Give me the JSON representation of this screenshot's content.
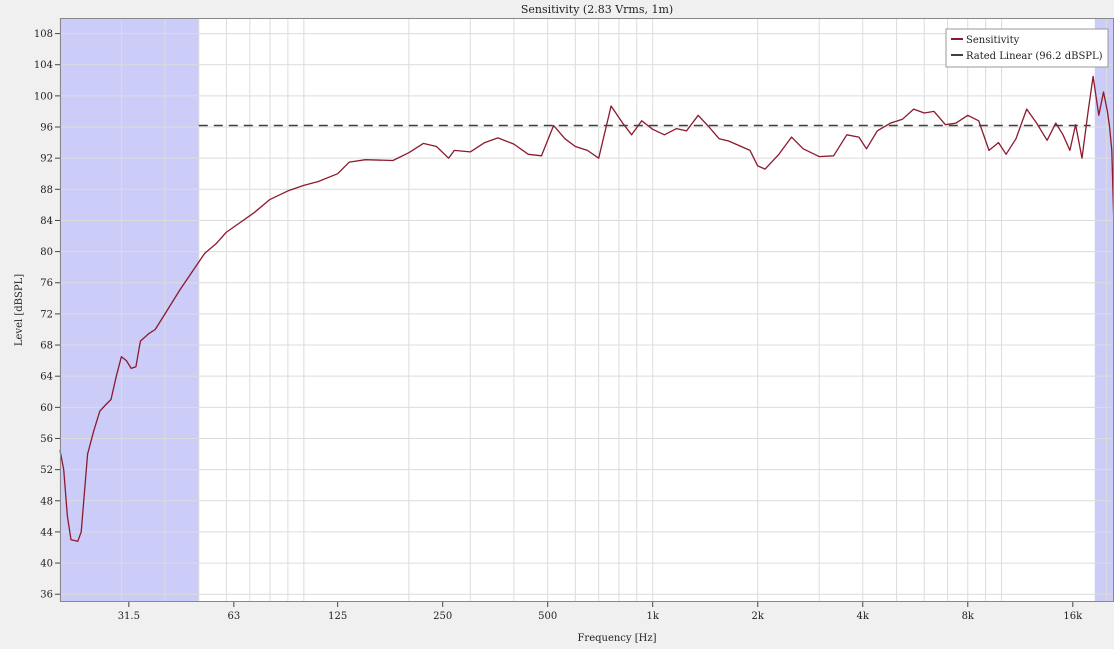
{
  "chart_data": {
    "type": "line",
    "title": "Sensitivity (2.83 Vrms, 1m)",
    "xlabel": "Frequency [Hz]",
    "ylabel": "Level [dBSPL]",
    "x_scale": "log",
    "xlim": [
      20,
      21000
    ],
    "ylim": [
      35,
      110
    ],
    "x_ticks": [
      {
        "value": 31.5,
        "label": "31.5"
      },
      {
        "value": 63,
        "label": "63"
      },
      {
        "value": 125,
        "label": "125"
      },
      {
        "value": 250,
        "label": "250"
      },
      {
        "value": 500,
        "label": "500"
      },
      {
        "value": 1000,
        "label": "1k"
      },
      {
        "value": 2000,
        "label": "2k"
      },
      {
        "value": 4000,
        "label": "4k"
      },
      {
        "value": 8000,
        "label": "8k"
      },
      {
        "value": 16000,
        "label": "16k"
      }
    ],
    "y_ticks": [
      36,
      40,
      44,
      48,
      52,
      56,
      60,
      64,
      68,
      72,
      76,
      80,
      84,
      88,
      92,
      96,
      100,
      104,
      108
    ],
    "grid": true,
    "legend_position": "top-right",
    "shaded_bands": [
      {
        "from": 20,
        "to": 50
      },
      {
        "from": 18500,
        "to": 21000
      }
    ],
    "series": [
      {
        "name": "Sensitivity",
        "color": "#8b1a2e",
        "style": "solid",
        "points": [
          [
            20,
            54.5
          ],
          [
            20.5,
            52
          ],
          [
            21,
            46
          ],
          [
            21.5,
            43
          ],
          [
            22.5,
            42.8
          ],
          [
            23,
            44
          ],
          [
            24,
            54
          ],
          [
            25,
            57
          ],
          [
            26,
            59.5
          ],
          [
            27,
            60.3
          ],
          [
            28,
            61
          ],
          [
            29,
            64
          ],
          [
            30,
            66.5
          ],
          [
            31,
            66
          ],
          [
            32,
            65
          ],
          [
            33,
            65.2
          ],
          [
            34,
            68.5
          ],
          [
            36,
            69.5
          ],
          [
            37.5,
            70
          ],
          [
            40,
            72
          ],
          [
            44,
            75
          ],
          [
            48,
            77.5
          ],
          [
            52,
            79.8
          ],
          [
            56,
            81
          ],
          [
            60,
            82.5
          ],
          [
            66,
            83.8
          ],
          [
            72,
            85
          ],
          [
            80,
            86.7
          ],
          [
            90,
            87.8
          ],
          [
            100,
            88.5
          ],
          [
            110,
            89
          ],
          [
            125,
            90
          ],
          [
            135,
            91.5
          ],
          [
            150,
            91.8
          ],
          [
            180,
            91.7
          ],
          [
            200,
            92.7
          ],
          [
            220,
            93.9
          ],
          [
            240,
            93.5
          ],
          [
            260,
            92
          ],
          [
            270,
            93
          ],
          [
            300,
            92.8
          ],
          [
            330,
            94
          ],
          [
            360,
            94.6
          ],
          [
            400,
            93.8
          ],
          [
            440,
            92.5
          ],
          [
            480,
            92.3
          ],
          [
            520,
            96.2
          ],
          [
            560,
            94.5
          ],
          [
            600,
            93.5
          ],
          [
            650,
            93
          ],
          [
            700,
            92
          ],
          [
            760,
            98.7
          ],
          [
            820,
            96.5
          ],
          [
            870,
            95
          ],
          [
            930,
            96.8
          ],
          [
            1000,
            95.7
          ],
          [
            1080,
            95
          ],
          [
            1170,
            95.8
          ],
          [
            1250,
            95.5
          ],
          [
            1350,
            97.5
          ],
          [
            1450,
            96
          ],
          [
            1550,
            94.5
          ],
          [
            1650,
            94.2
          ],
          [
            1750,
            93.7
          ],
          [
            1900,
            93
          ],
          [
            2000,
            91
          ],
          [
            2100,
            90.6
          ],
          [
            2300,
            92.5
          ],
          [
            2500,
            94.7
          ],
          [
            2700,
            93.2
          ],
          [
            3000,
            92.2
          ],
          [
            3300,
            92.3
          ],
          [
            3600,
            95
          ],
          [
            3900,
            94.7
          ],
          [
            4100,
            93.2
          ],
          [
            4400,
            95.5
          ],
          [
            4800,
            96.5
          ],
          [
            5200,
            97
          ],
          [
            5600,
            98.3
          ],
          [
            6000,
            97.8
          ],
          [
            6400,
            98
          ],
          [
            6900,
            96.3
          ],
          [
            7400,
            96.5
          ],
          [
            8000,
            97.5
          ],
          [
            8600,
            96.8
          ],
          [
            9200,
            93
          ],
          [
            9800,
            94
          ],
          [
            10300,
            92.5
          ],
          [
            11000,
            94.5
          ],
          [
            11800,
            98.3
          ],
          [
            12600,
            96.5
          ],
          [
            13500,
            94.3
          ],
          [
            14300,
            96.5
          ],
          [
            15000,
            95
          ],
          [
            15700,
            93
          ],
          [
            16300,
            96.3
          ],
          [
            17000,
            92
          ],
          [
            17700,
            98
          ],
          [
            18300,
            102.5
          ],
          [
            19000,
            97.5
          ],
          [
            19600,
            100.5
          ],
          [
            20100,
            98
          ],
          [
            20400,
            96
          ],
          [
            20700,
            93
          ],
          [
            21000,
            83
          ],
          [
            21000,
            82
          ]
        ]
      },
      {
        "name": "Rated Linear (96.2 dBSPL)",
        "color": "#404040",
        "style": "dashed",
        "points": [
          [
            50,
            96.2
          ],
          [
            18000,
            96.2
          ]
        ]
      }
    ]
  }
}
